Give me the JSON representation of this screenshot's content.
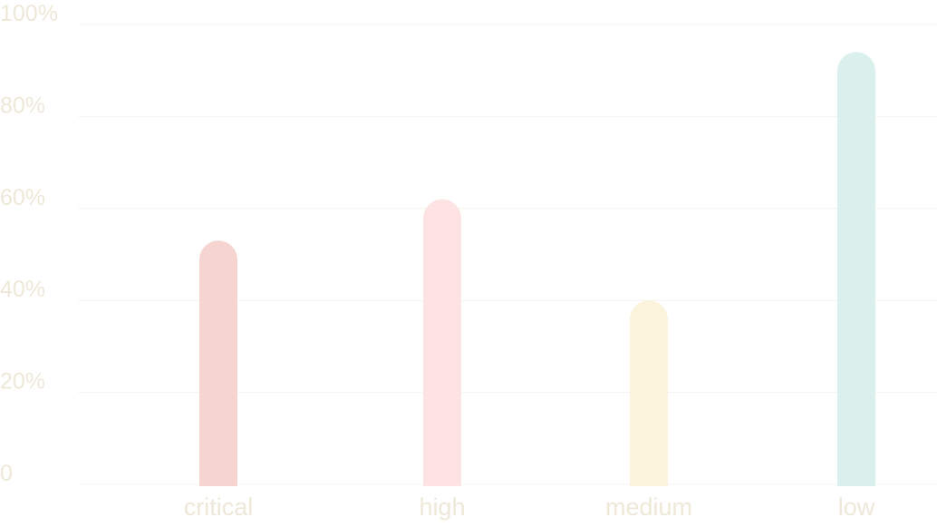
{
  "chart_data": {
    "type": "bar",
    "categories": [
      "critical",
      "high",
      "medium",
      "low"
    ],
    "values": [
      53,
      62,
      40,
      94
    ],
    "bar_colors": [
      "#f6d5d1",
      "#fde3e1",
      "#fcf3dd",
      "#daf0ec"
    ],
    "yticks": [
      {
        "value": 0,
        "label": "0"
      },
      {
        "value": 20,
        "label": "20%"
      },
      {
        "value": 40,
        "label": "40%"
      },
      {
        "value": 60,
        "label": "60%"
      },
      {
        "value": 80,
        "label": "80%"
      },
      {
        "value": 100,
        "label": "100%"
      }
    ],
    "ylim": [
      0,
      100
    ],
    "grid": true,
    "legend": "none"
  }
}
